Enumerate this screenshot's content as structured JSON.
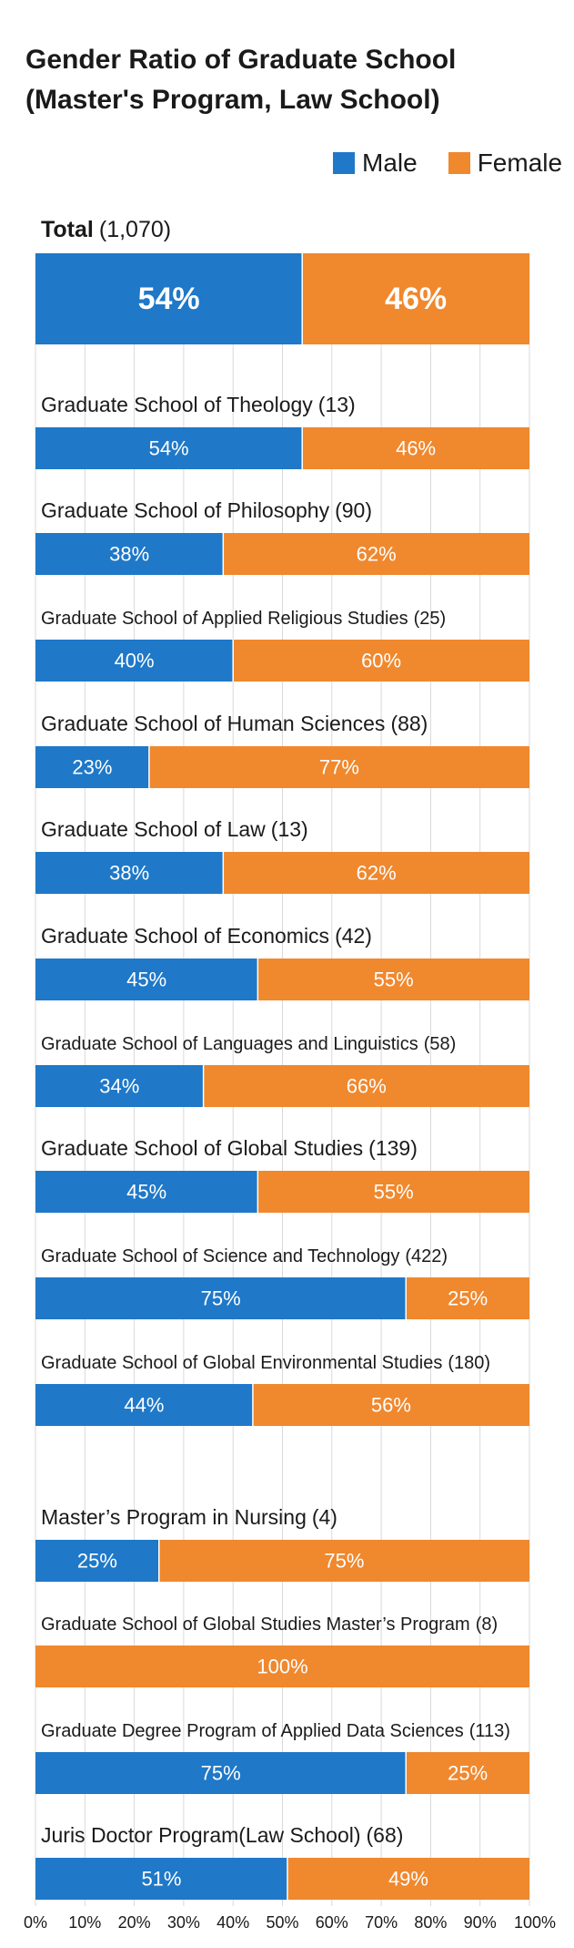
{
  "chart_data": {
    "type": "bar",
    "orientation": "horizontal-stacked-100",
    "title": [
      "Gender Ratio of Graduate School",
      "(Master's Program, Law School)"
    ],
    "legend": [
      {
        "name": "Male",
        "color": "#1f78c8"
      },
      {
        "name": "Female",
        "color": "#f0882e"
      }
    ],
    "xlim": [
      0,
      100
    ],
    "ticks": [
      "0%",
      "10%",
      "20%",
      "30%",
      "40%",
      "50%",
      "60%",
      "70%",
      "80%",
      "90%",
      "100%"
    ],
    "rows": [
      {
        "label": "Total",
        "count": "(1,070)",
        "male": 54,
        "female": 46,
        "male_label": "54%",
        "female_label": "46%",
        "total": true
      },
      {
        "label": "Graduate School of Theology",
        "count": "(13)",
        "male": 54,
        "female": 46,
        "male_label": "54%",
        "female_label": "46%"
      },
      {
        "label": "Graduate School of Philosophy",
        "count": "(90)",
        "male": 38,
        "female": 62,
        "male_label": "38%",
        "female_label": "62%"
      },
      {
        "label": "Graduate School of Applied Religious Studies",
        "count": "(25)",
        "male": 40,
        "female": 60,
        "male_label": "40%",
        "female_label": "60%"
      },
      {
        "label": "Graduate School of Human Sciences",
        "count": "(88)",
        "male": 23,
        "female": 77,
        "male_label": "23%",
        "female_label": "77%"
      },
      {
        "label": "Graduate School of Law",
        "count": "(13)",
        "male": 38,
        "female": 62,
        "male_label": "38%",
        "female_label": "62%"
      },
      {
        "label": "Graduate School of Economics",
        "count": "(42)",
        "male": 45,
        "female": 55,
        "male_label": "45%",
        "female_label": "55%"
      },
      {
        "label": "Graduate School of Languages and Linguistics",
        "count": "(58)",
        "male": 34,
        "female": 66,
        "male_label": "34%",
        "female_label": "66%"
      },
      {
        "label": "Graduate School of Global Studies",
        "count": "(139)",
        "male": 45,
        "female": 55,
        "male_label": "45%",
        "female_label": "55%"
      },
      {
        "label": "Graduate School of Science and Technology",
        "count": "(422)",
        "male": 75,
        "female": 25,
        "male_label": "75%",
        "female_label": "25%"
      },
      {
        "label": "Graduate School of Global Environmental Studies",
        "count": "(180)",
        "male": 44,
        "female": 56,
        "male_label": "44%",
        "female_label": "56%"
      },
      {
        "label": "Master’s Program in Nursing",
        "count": "(4)",
        "male": 25,
        "female": 75,
        "male_label": "25%",
        "female_label": "75%"
      },
      {
        "label": "Graduate School of Global Studies Master’s Program",
        "count": "(8)",
        "male": 0,
        "female": 100,
        "male_label": "",
        "female_label": "100%"
      },
      {
        "label": "Graduate Degree Program of Applied Data Sciences",
        "count": "(113)",
        "male": 75,
        "female": 25,
        "male_label": "75%",
        "female_label": "25%"
      },
      {
        "label": "Juris Doctor Program(Law School)",
        "count": "(68)",
        "male": 51,
        "female": 49,
        "male_label": "51%",
        "female_label": "49%"
      }
    ]
  }
}
